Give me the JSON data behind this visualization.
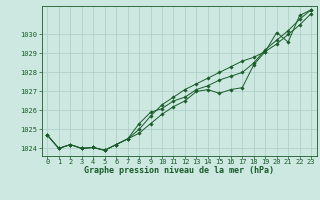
{
  "background_color": "#cce8e0",
  "grid_color": "#aaccc4",
  "line_color": "#1a5c2a",
  "text_color": "#1a5c2a",
  "xlabel": "Graphe pression niveau de la mer (hPa)",
  "xlim": [
    -0.5,
    23.5
  ],
  "ylim": [
    1023.6,
    1031.5
  ],
  "yticks": [
    1024,
    1025,
    1026,
    1027,
    1028,
    1029,
    1030
  ],
  "xticks": [
    0,
    1,
    2,
    3,
    4,
    5,
    6,
    7,
    8,
    9,
    10,
    11,
    12,
    13,
    14,
    15,
    16,
    17,
    18,
    19,
    20,
    21,
    22,
    23
  ],
  "series": [
    [
      1024.7,
      1024.0,
      1024.2,
      1024.0,
      1024.05,
      1023.9,
      1024.2,
      1024.5,
      1024.8,
      1025.3,
      1025.8,
      1026.2,
      1026.5,
      1027.0,
      1027.1,
      1026.9,
      1027.1,
      1027.2,
      1028.4,
      1029.1,
      1030.1,
      1029.6,
      1031.0,
      1031.3
    ],
    [
      1024.7,
      1024.0,
      1024.2,
      1024.0,
      1024.05,
      1023.9,
      1024.2,
      1024.5,
      1025.0,
      1025.7,
      1026.3,
      1026.7,
      1027.1,
      1027.4,
      1027.7,
      1028.0,
      1028.3,
      1028.6,
      1028.8,
      1029.1,
      1029.5,
      1030.0,
      1030.5,
      1031.1
    ],
    [
      1024.7,
      1024.0,
      1024.2,
      1024.0,
      1024.05,
      1023.9,
      1024.2,
      1024.5,
      1025.3,
      1025.9,
      1026.1,
      1026.5,
      1026.7,
      1027.1,
      1027.3,
      1027.6,
      1027.8,
      1028.0,
      1028.5,
      1029.2,
      1029.7,
      1030.2,
      1030.8,
      1031.3
    ]
  ],
  "tick_fontsize": 5.0,
  "xlabel_fontsize": 6.0
}
